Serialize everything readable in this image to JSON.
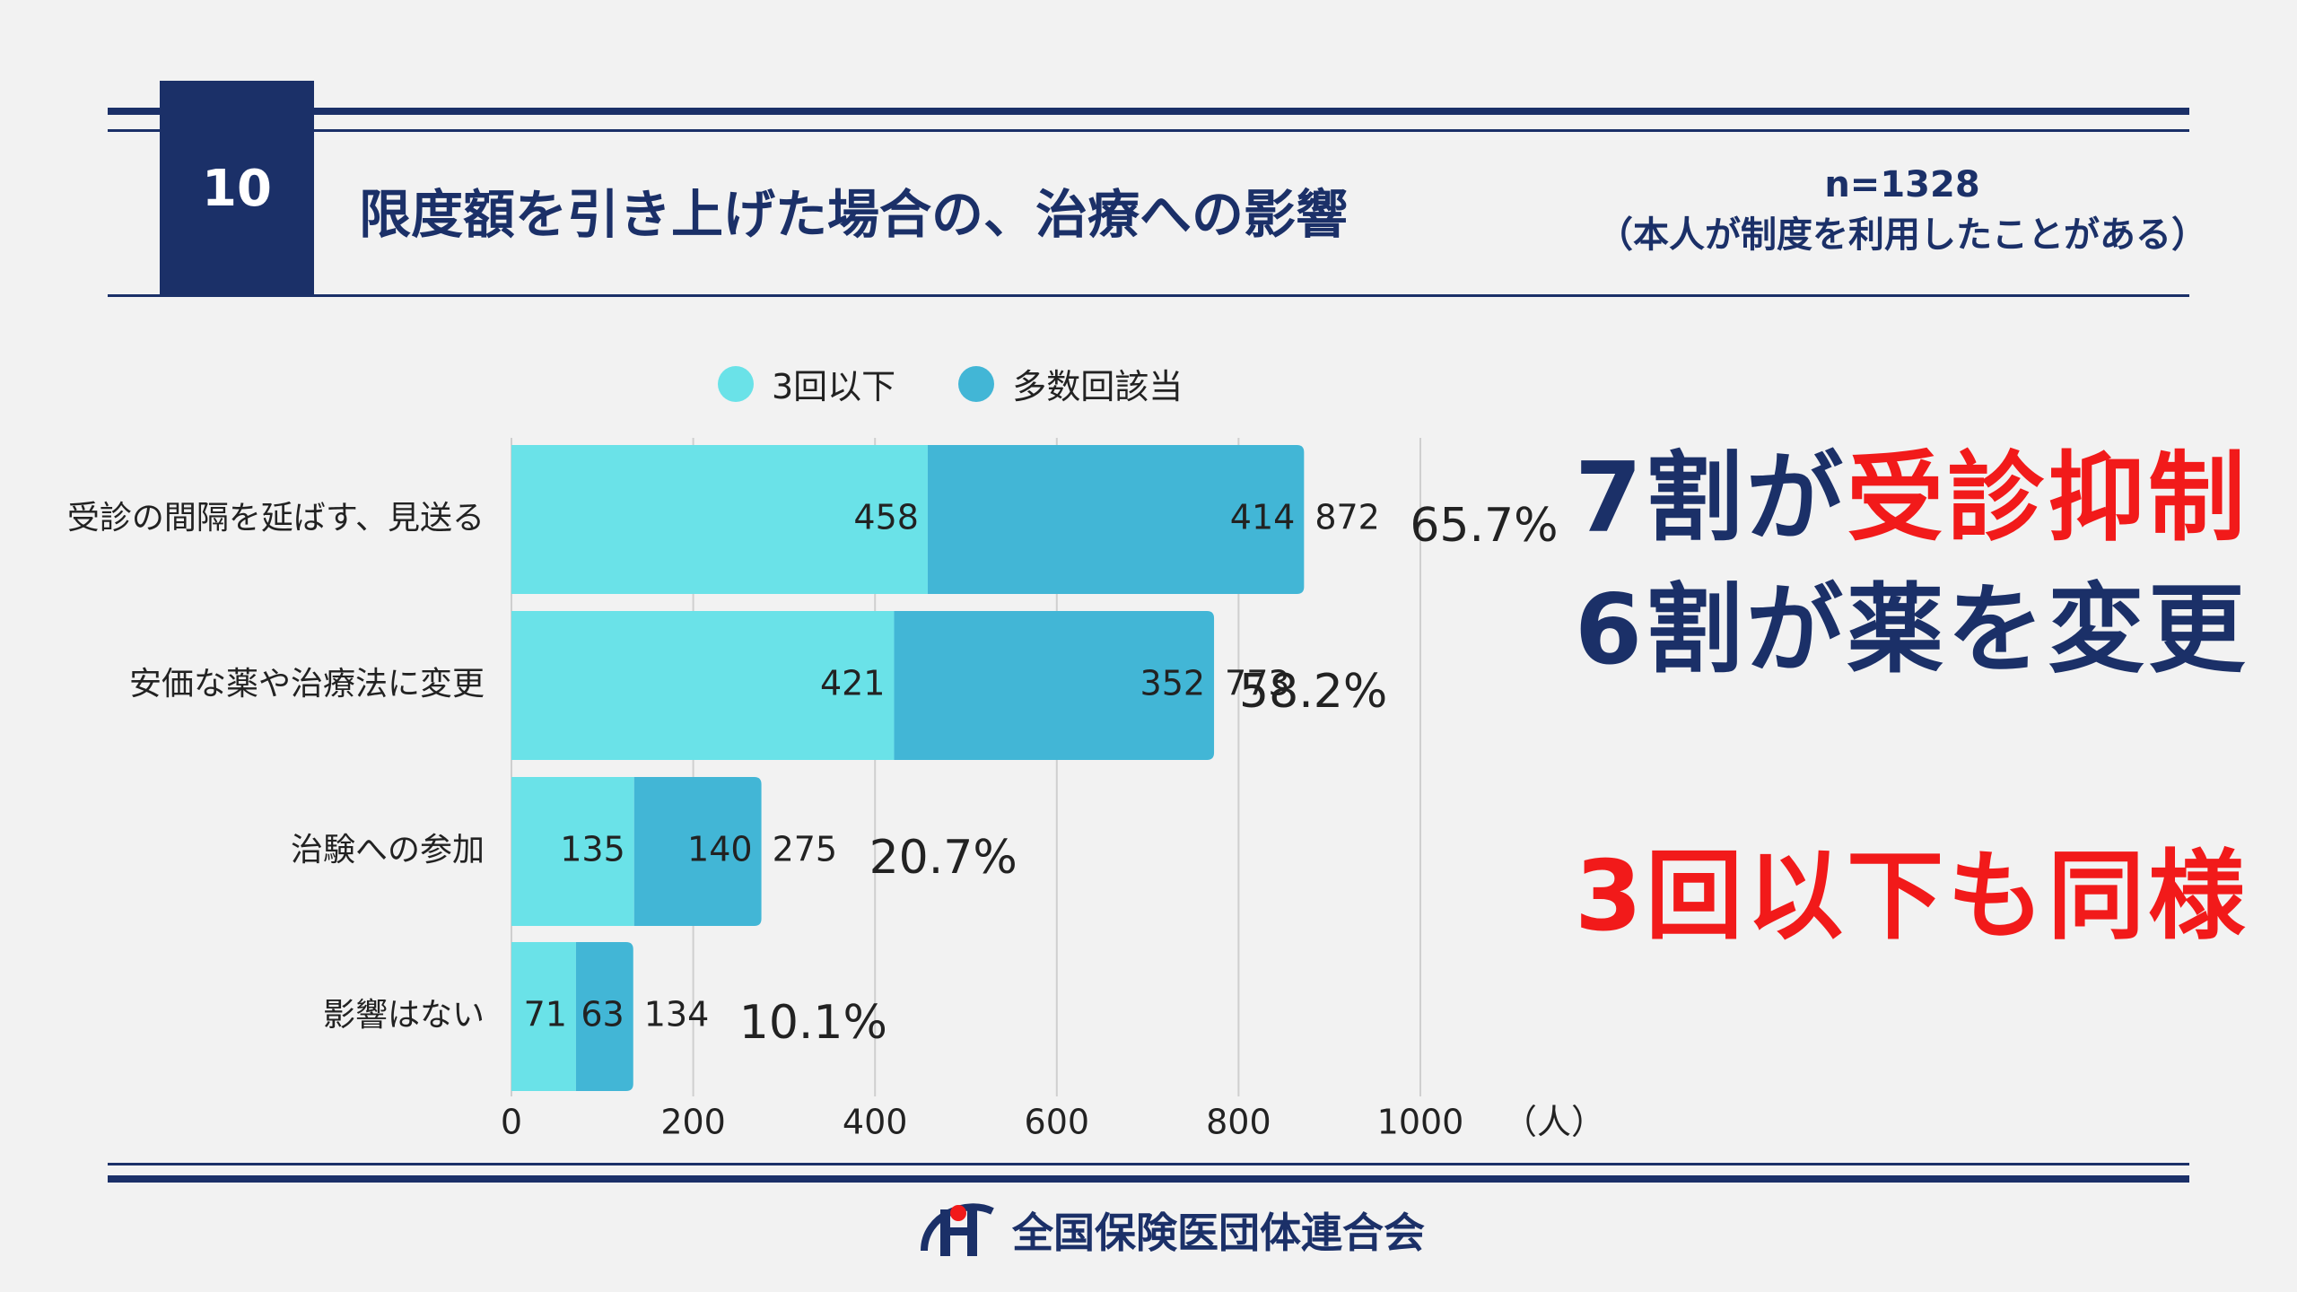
{
  "header": {
    "number": "10",
    "title": "限度額を引き上げた場合の、治療への影響",
    "sample_size": "n=1328",
    "sample_note": "（本人が制度を利用したことがある）"
  },
  "colors": {
    "navy": "#1b3068",
    "series_low": "#6ae2e8",
    "series_high": "#42b6d6",
    "emphasis_red": "#f21a1a"
  },
  "chart_data": {
    "type": "bar",
    "orientation": "horizontal",
    "stacked": true,
    "categories": [
      "受診の間隔を延ばす、見送る",
      "安価な薬や治療法に変更",
      "治験への参加",
      "影響はない"
    ],
    "series": [
      {
        "name": "3回以下",
        "values": [
          458,
          421,
          135,
          71
        ]
      },
      {
        "name": "多数回該当",
        "values": [
          414,
          352,
          140,
          63
        ]
      }
    ],
    "totals": [
      "872",
      "773",
      "275",
      "134"
    ],
    "percentages": [
      "65.7%",
      "58.2%",
      "20.7%",
      "10.1%"
    ],
    "x_ticks": [
      "0",
      "200",
      "400",
      "600",
      "800",
      "1000"
    ],
    "x_unit": "（人）",
    "xlim": [
      0,
      1000
    ],
    "grid": true,
    "legend_position": "top"
  },
  "callouts": {
    "line1_prefix": "7割が",
    "line1_emphasis": "受診抑制",
    "line2": "6割が薬を変更",
    "line3": "3回以下も同様"
  },
  "footer": {
    "logo_icon": "h-mark-logo-icon",
    "organization": "全国保険医団体連合会"
  }
}
